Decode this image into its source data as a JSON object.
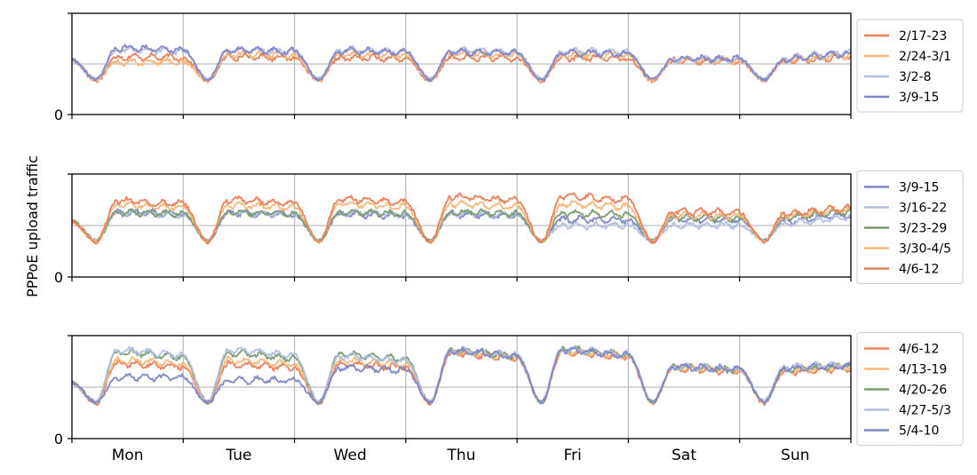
{
  "figure": {
    "ylabel": "PPPoE upload traffic",
    "days": [
      "Mon",
      "Tue",
      "Wed",
      "Thu",
      "Fri",
      "Sat",
      "Sun"
    ]
  },
  "colors": {
    "orange_red": "#e8805a",
    "light_orange": "#f5b77a",
    "light_blue": "#b3bfe0",
    "slate_blue": "#7e86c4",
    "green": "#7a9c6f",
    "gridline": "#bdbdbd",
    "axis": "#000000"
  },
  "chart_data": [
    {
      "type": "line",
      "panel": "top",
      "ylabel": "PPPoE upload traffic",
      "yticks": [
        "0"
      ],
      "ylim": [
        0,
        1.0
      ],
      "midline": 0.5,
      "x": [
        "Mon",
        "Tue",
        "Wed",
        "Thu",
        "Fri",
        "Sat",
        "Sun"
      ],
      "legend_position": "right",
      "series": [
        {
          "name": "2/17-23",
          "color": "#e8805a",
          "values": {
            "night": 0.33,
            "day": [
              0.57,
              0.57,
              0.56,
              0.56,
              0.56,
              0.53,
              0.53
            ],
            "sunday_end": 0.57
          }
        },
        {
          "name": "2/24-3/1",
          "color": "#f5b77a",
          "values": {
            "night": 0.34,
            "day": [
              0.52,
              0.6,
              0.6,
              0.6,
              0.6,
              0.53,
              0.54
            ],
            "sunday_end": 0.58
          }
        },
        {
          "name": "3/2-8",
          "color": "#b3bfe0",
          "values": {
            "night": 0.35,
            "day": [
              0.64,
              0.64,
              0.64,
              0.63,
              0.63,
              0.55,
              0.56
            ],
            "sunday_end": 0.62
          }
        },
        {
          "name": "3/9-15",
          "color": "#7e86c4",
          "values": {
            "night": 0.34,
            "day": [
              0.66,
              0.64,
              0.63,
              0.62,
              0.61,
              0.55,
              0.55
            ],
            "sunday_end": 0.6
          }
        }
      ]
    },
    {
      "type": "line",
      "panel": "middle",
      "ylabel": "PPPoE upload traffic",
      "yticks": [
        "0"
      ],
      "ylim": [
        0,
        1.0
      ],
      "midline": 0.5,
      "x": [
        "Mon",
        "Tue",
        "Wed",
        "Thu",
        "Fri",
        "Sat",
        "Sun"
      ],
      "legend_position": "right",
      "series": [
        {
          "name": "3/9-15",
          "color": "#7e86c4",
          "values": {
            "night": 0.35,
            "day": [
              0.63,
              0.62,
              0.61,
              0.61,
              0.56,
              0.56,
              0.55
            ],
            "sunday_end": 0.6
          }
        },
        {
          "name": "3/16-22",
          "color": "#b3bfe0",
          "values": {
            "night": 0.36,
            "day": [
              0.62,
              0.62,
              0.62,
              0.62,
              0.5,
              0.5,
              0.52
            ],
            "sunday_end": 0.58
          }
        },
        {
          "name": "3/23-29",
          "color": "#7a9c6f",
          "values": {
            "night": 0.35,
            "day": [
              0.63,
              0.63,
              0.63,
              0.63,
              0.62,
              0.58,
              0.58
            ],
            "sunday_end": 0.63
          }
        },
        {
          "name": "3/30-4/5",
          "color": "#f5b77a",
          "values": {
            "night": 0.34,
            "day": [
              0.7,
              0.7,
              0.71,
              0.71,
              0.71,
              0.6,
              0.6
            ],
            "sunday_end": 0.65
          }
        },
        {
          "name": "4/6-12",
          "color": "#e8805a",
          "values": {
            "night": 0.34,
            "day": [
              0.74,
              0.75,
              0.76,
              0.78,
              0.79,
              0.64,
              0.62
            ],
            "sunday_end": 0.67
          }
        }
      ]
    },
    {
      "type": "line",
      "panel": "bottom",
      "ylabel": "PPPoE upload traffic",
      "yticks": [
        "0"
      ],
      "ylim": [
        0,
        1.0
      ],
      "midline": 0.5,
      "x": [
        "Mon",
        "Tue",
        "Wed",
        "Thu",
        "Fri",
        "Sat",
        "Sun"
      ],
      "legend_position": "right",
      "series": [
        {
          "name": "4/6-12",
          "color": "#e8805a",
          "values": {
            "night": 0.34,
            "day": [
              0.73,
              0.72,
              0.72,
              0.83,
              0.84,
              0.68,
              0.65
            ],
            "sunday_end": 0.68
          }
        },
        {
          "name": "4/13-19",
          "color": "#f5b77a",
          "values": {
            "night": 0.35,
            "day": [
              0.76,
              0.76,
              0.76,
              0.84,
              0.85,
              0.69,
              0.66
            ],
            "sunday_end": 0.69
          }
        },
        {
          "name": "4/20-26",
          "color": "#7a9c6f",
          "values": {
            "night": 0.35,
            "day": [
              0.84,
              0.83,
              0.82,
              0.86,
              0.87,
              0.7,
              0.68
            ],
            "sunday_end": 0.71
          }
        },
        {
          "name": "4/27-5/3",
          "color": "#b3bfe0",
          "values": {
            "night": 0.36,
            "day": [
              0.86,
              0.86,
              0.8,
              0.86,
              0.87,
              0.7,
              0.7
            ],
            "sunday_end": 0.72
          }
        },
        {
          "name": "5/4-10",
          "color": "#7e86c4",
          "values": {
            "night": 0.35,
            "day": [
              0.6,
              0.57,
              0.69,
              0.85,
              0.86,
              0.7,
              0.68
            ],
            "sunday_end": 0.7
          }
        }
      ]
    }
  ]
}
